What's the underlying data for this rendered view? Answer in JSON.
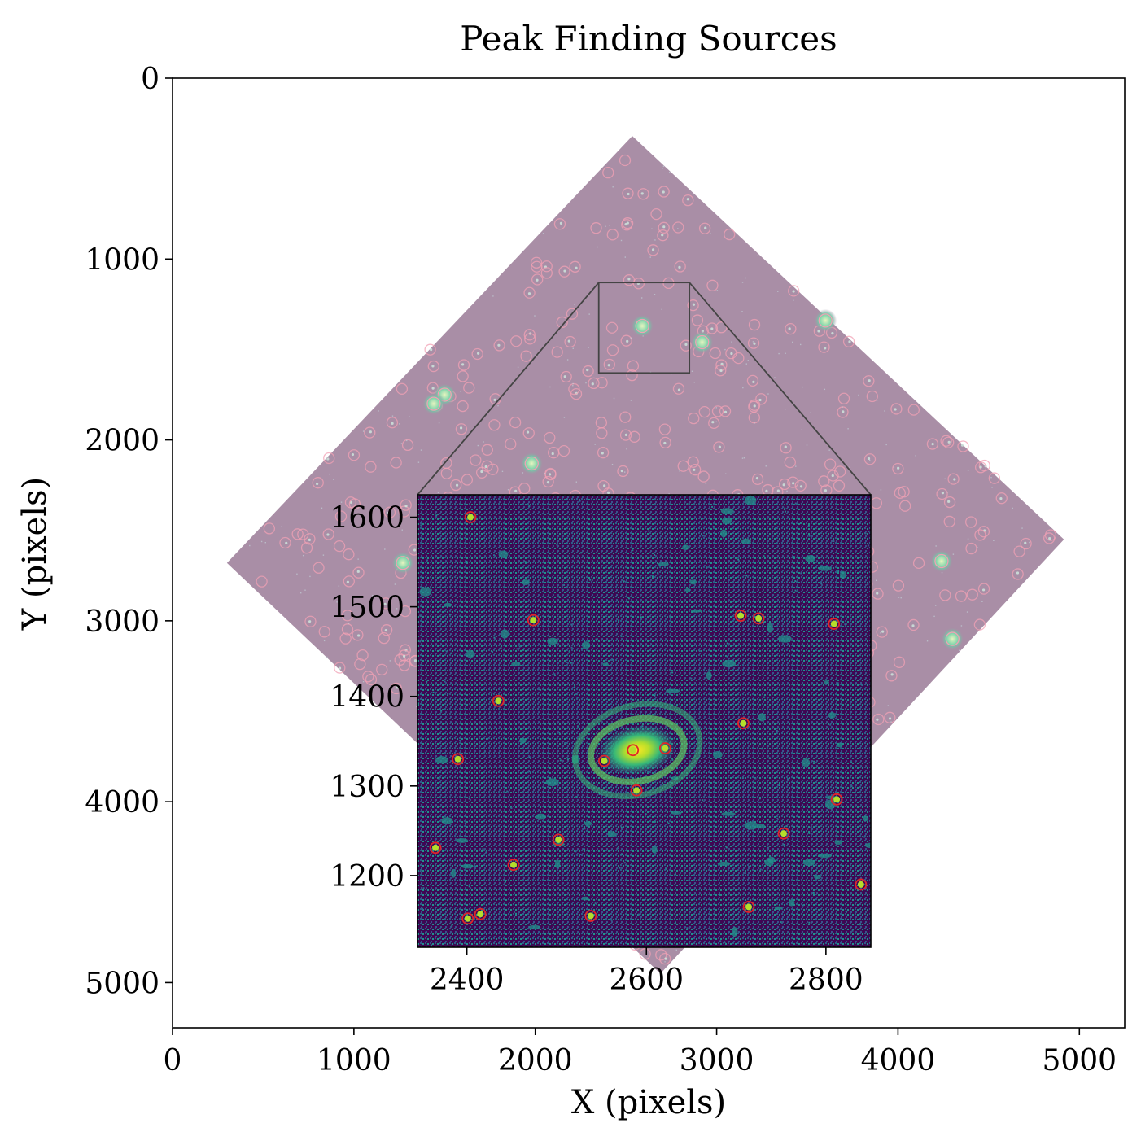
{
  "chart_data": [
    {
      "type": "scatter",
      "role": "main",
      "title": "Peak Finding Sources",
      "xlabel": "X (pixels)",
      "ylabel": "Y (pixels)",
      "xlim": [
        0,
        5250
      ],
      "ylim": [
        5250,
        0
      ],
      "y_inverted": true,
      "xticks": [
        0,
        1000,
        2000,
        3000,
        4000,
        5000
      ],
      "yticks": [
        0,
        1000,
        2000,
        3000,
        4000,
        5000
      ],
      "image_footprint": {
        "corners": [
          [
            2535,
            320
          ],
          [
            4915,
            2550
          ],
          [
            2690,
            4950
          ],
          [
            300,
            2680
          ]
        ],
        "color": "#a98ea6"
      },
      "zoom_box": {
        "x": [
          2350,
          2850
        ],
        "y": [
          1130,
          1630
        ]
      },
      "bright_sources": [
        {
          "x": 2590,
          "y": 1370
        },
        {
          "x": 3600,
          "y": 1340
        },
        {
          "x": 1500,
          "y": 1750
        },
        {
          "x": 1980,
          "y": 2130
        },
        {
          "x": 1270,
          "y": 2680
        },
        {
          "x": 4240,
          "y": 2670
        },
        {
          "x": 4300,
          "y": 3100
        },
        {
          "x": 2920,
          "y": 1460
        },
        {
          "x": 1440,
          "y": 1800
        }
      ],
      "source_marker_color": "#f2a0b4",
      "grid": false,
      "legend": "none"
    },
    {
      "type": "scatter",
      "role": "inset",
      "xlim": [
        2345,
        2850
      ],
      "ylim": [
        1120,
        1625
      ],
      "xticks": [
        2400,
        2600,
        2800
      ],
      "yticks": [
        1200,
        1300,
        1400,
        1500,
        1600
      ],
      "colormap": "viridis",
      "galaxy_center": {
        "x": 2590,
        "y": 1340
      },
      "sources": [
        {
          "x": 2404,
          "y": 1600
        },
        {
          "x": 2474,
          "y": 1485
        },
        {
          "x": 2435,
          "y": 1395
        },
        {
          "x": 2585,
          "y": 1340
        },
        {
          "x": 2621,
          "y": 1342
        },
        {
          "x": 2553,
          "y": 1328
        },
        {
          "x": 2390,
          "y": 1330
        },
        {
          "x": 2589,
          "y": 1295
        },
        {
          "x": 2502,
          "y": 1240
        },
        {
          "x": 2365,
          "y": 1231
        },
        {
          "x": 2452,
          "y": 1212
        },
        {
          "x": 2401,
          "y": 1152
        },
        {
          "x": 2538,
          "y": 1155
        },
        {
          "x": 2725,
          "y": 1487
        },
        {
          "x": 2705,
          "y": 1490
        },
        {
          "x": 2809,
          "y": 1481
        },
        {
          "x": 2753,
          "y": 1247
        },
        {
          "x": 2812,
          "y": 1285
        },
        {
          "x": 2708,
          "y": 1370
        },
        {
          "x": 2839,
          "y": 1190
        },
        {
          "x": 2714,
          "y": 1165
        },
        {
          "x": 2415,
          "y": 1157
        }
      ],
      "marker_color": "#e0242a",
      "grid": false,
      "legend": "none"
    }
  ]
}
